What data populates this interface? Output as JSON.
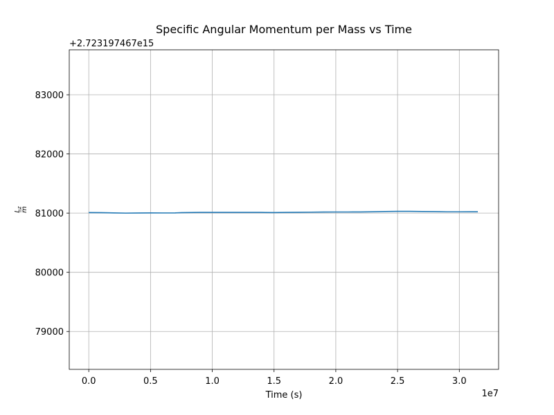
{
  "chart_data": {
    "type": "line",
    "title": "Specific Angular Momentum per Mass vs Time",
    "xlabel": "Time (s)",
    "ylabel_num": "L",
    "ylabel_sub": "z",
    "ylabel_den": "m",
    "x_exponent_label": "1e7",
    "y_offset_label": "+2.723197467e15",
    "xlim": [
      -1580000,
      33180000
    ],
    "ylim": [
      78360,
      83760
    ],
    "x_ticks": [
      {
        "value": 0,
        "label": "0.0"
      },
      {
        "value": 5000000,
        "label": "0.5"
      },
      {
        "value": 10000000,
        "label": "1.0"
      },
      {
        "value": 15000000,
        "label": "1.5"
      },
      {
        "value": 20000000,
        "label": "2.0"
      },
      {
        "value": 25000000,
        "label": "2.5"
      },
      {
        "value": 30000000,
        "label": "3.0"
      }
    ],
    "y_ticks": [
      {
        "value": 79000,
        "label": "79000"
      },
      {
        "value": 80000,
        "label": "80000"
      },
      {
        "value": 81000,
        "label": "81000"
      },
      {
        "value": 82000,
        "label": "82000"
      },
      {
        "value": 83000,
        "label": "83000"
      }
    ],
    "grid": true,
    "series": [
      {
        "color": "#1f77b4",
        "x": [
          0,
          1000000,
          2000000,
          3000000,
          4000000,
          5000000,
          6000000,
          7000000,
          7500000,
          8000000,
          9000000,
          10000000,
          11000000,
          12000000,
          13000000,
          14000000,
          15000000,
          16000000,
          17000000,
          18000000,
          19000000,
          20000000,
          21000000,
          22000000,
          23000000,
          24000000,
          25000000,
          26000000,
          27000000,
          28000000,
          29000000,
          30000000,
          31000000,
          31500000
        ],
        "y": [
          81010,
          81008,
          81004,
          81000,
          81002,
          81004,
          81003,
          81004,
          81008,
          81010,
          81012,
          81012,
          81012,
          81013,
          81012,
          81012,
          81010,
          81012,
          81014,
          81016,
          81018,
          81019,
          81019,
          81020,
          81023,
          81027,
          81030,
          81030,
          81027,
          81026,
          81022,
          81022,
          81023,
          81023
        ]
      }
    ]
  }
}
